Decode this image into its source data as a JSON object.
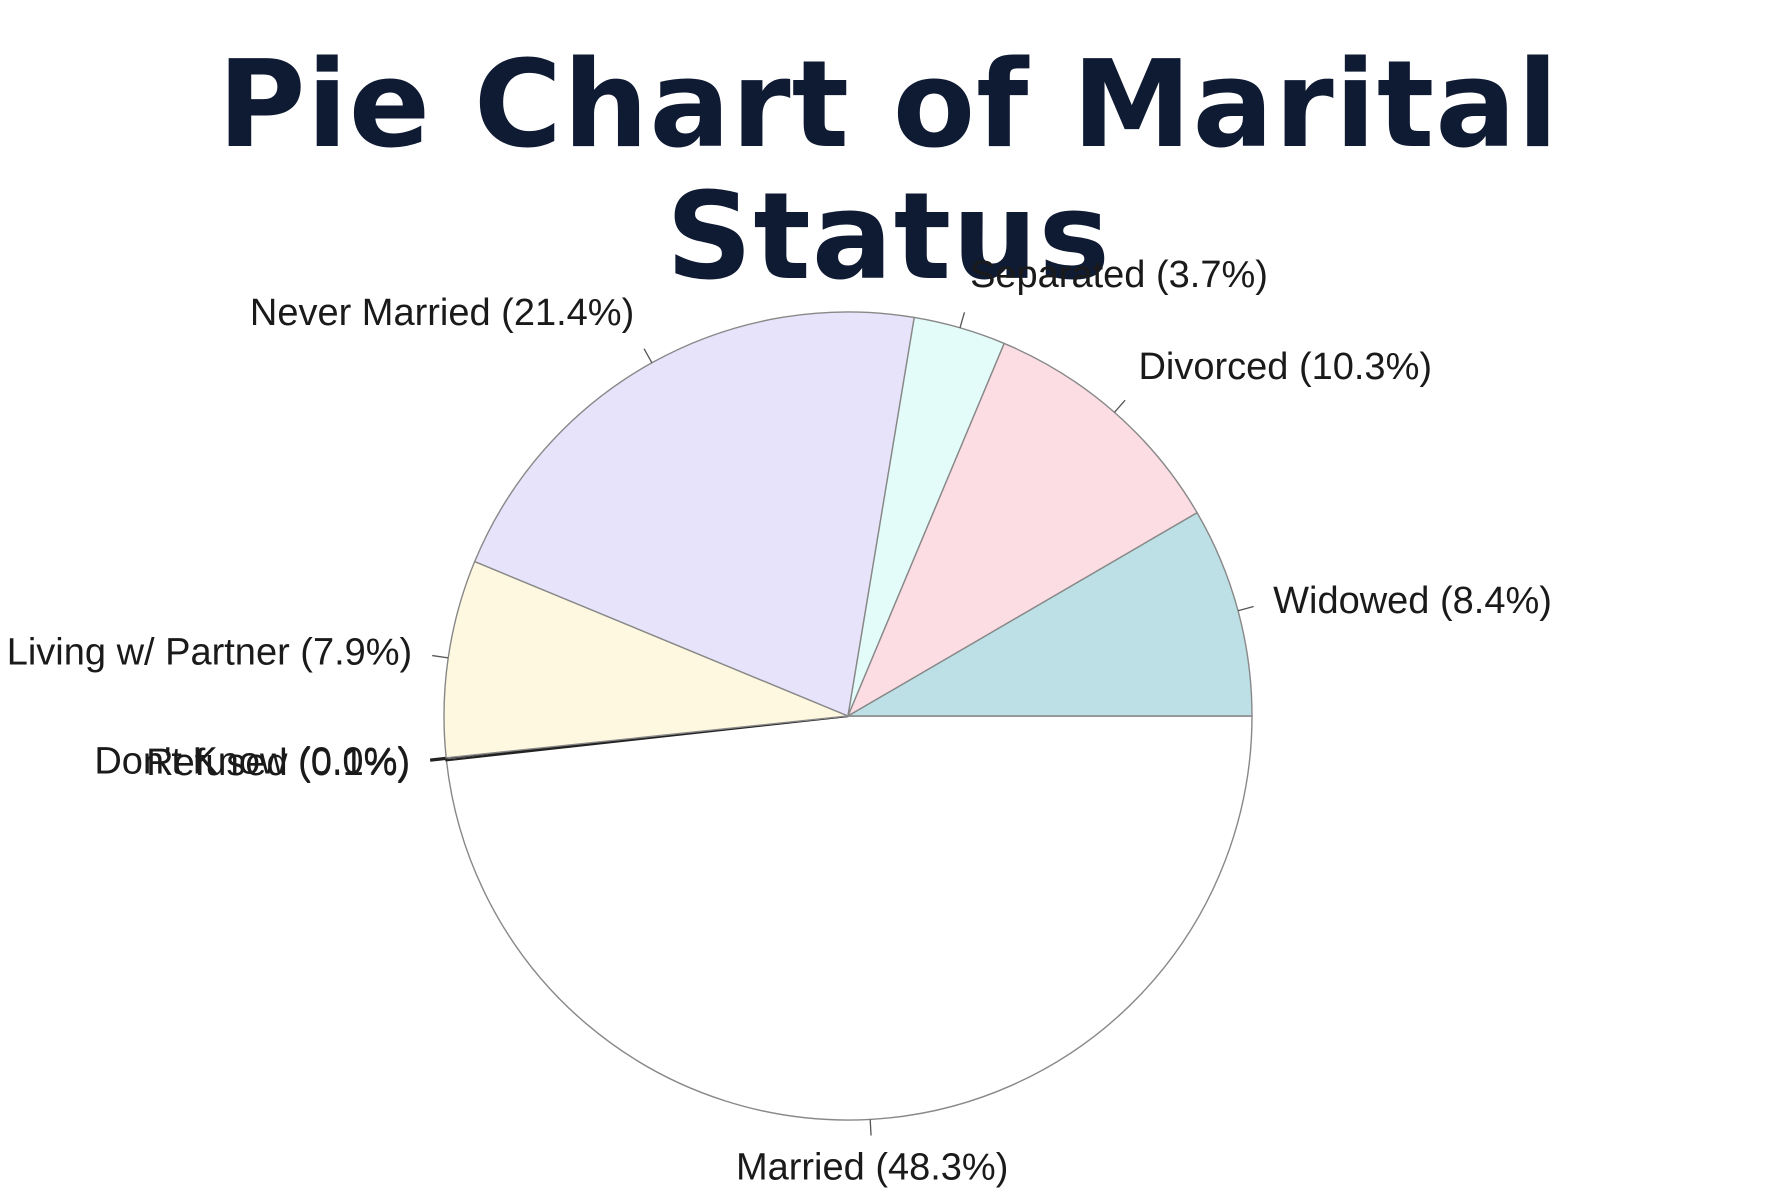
{
  "title": "Pie Chart of Marital Status",
  "colors": {
    "title": "#0f1a33",
    "outline": "#888888",
    "leader": "#555555"
  },
  "chart_data": {
    "type": "pie",
    "start_angle_deg": 0,
    "direction": "clockwise",
    "slices": [
      {
        "name": "Married",
        "label": "Married (48.3%)",
        "value": 48.3,
        "color": "#ffffff"
      },
      {
        "name": "Refused",
        "label": "Refused (0.1%)",
        "value": 0.1,
        "color": "#f7fbfb"
      },
      {
        "name": "Don't Know",
        "label": "Don't Know (0.0%)",
        "value": 0.0,
        "color": "#ffffff"
      },
      {
        "name": "Living w/ Partner",
        "label": "Living w/ Partner (7.9%)",
        "value": 7.9,
        "color": "#fff8e0"
      },
      {
        "name": "Never Married",
        "label": "Never Married (21.4%)",
        "value": 21.4,
        "color": "#e6e3fa"
      },
      {
        "name": "Separated",
        "label": "Separated (3.7%)",
        "value": 3.7,
        "color": "#e3fcfa"
      },
      {
        "name": "Divorced",
        "label": "Divorced (10.3%)",
        "value": 10.3,
        "color": "#fbdde3"
      },
      {
        "name": "Widowed",
        "label": "Widowed (8.4%)",
        "value": 8.4,
        "color": "#bce0e5"
      }
    ]
  }
}
